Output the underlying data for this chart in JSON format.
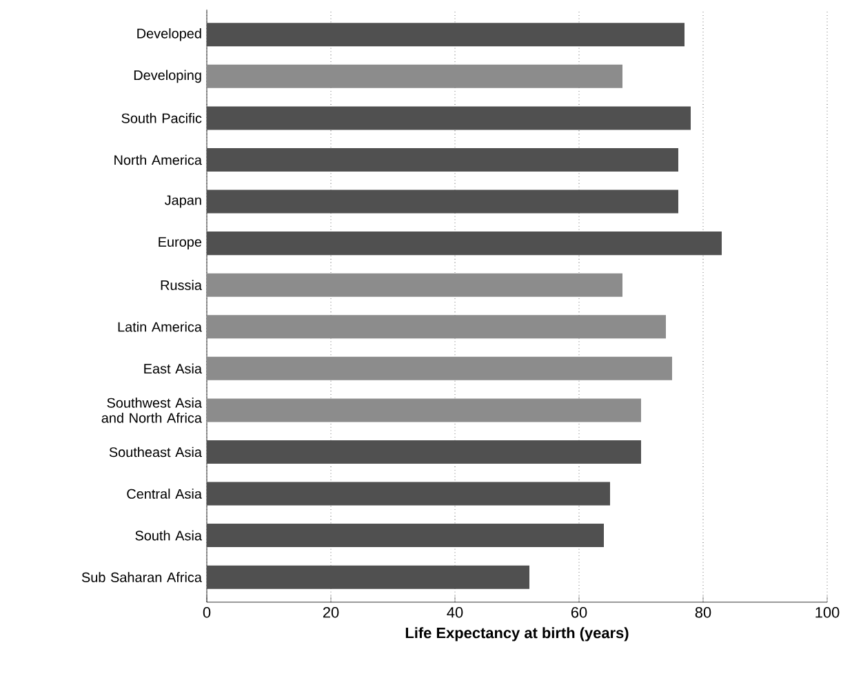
{
  "chart_data": {
    "type": "bar",
    "orientation": "horizontal",
    "xlabel": "Life Expectancy at birth (years)",
    "categories": [
      "Developed",
      "Developing",
      "South Pacific",
      "North America",
      "Japan",
      "Europe",
      "Russia",
      "Latin America",
      "East Asia",
      "Southwest Asia and North Africa",
      "Southeast Asia",
      "Central Asia",
      "South Asia",
      "Sub Saharan Africa"
    ],
    "values": [
      77,
      67,
      78,
      76,
      76,
      83,
      67,
      74,
      75,
      70,
      70,
      65,
      64,
      52
    ],
    "colors": [
      "#505050",
      "#8c8c8c",
      "#505050",
      "#505050",
      "#505050",
      "#505050",
      "#8c8c8c",
      "#8c8c8c",
      "#8c8c8c",
      "#8c8c8c",
      "#505050",
      "#505050",
      "#505050",
      "#505050"
    ],
    "xlim": [
      0,
      100
    ],
    "xticks": [
      0,
      20,
      40,
      60,
      80,
      100
    ],
    "grid": "x"
  }
}
